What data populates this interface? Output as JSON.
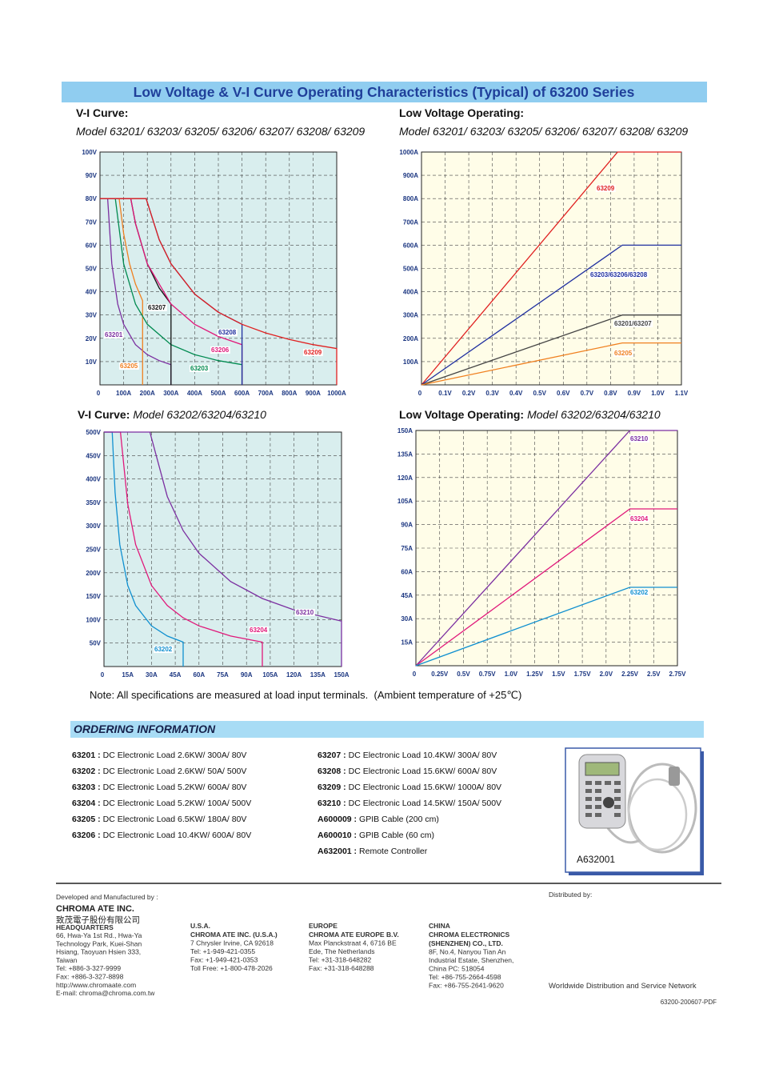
{
  "header": {
    "title": "Low Voltage & V-I Curve Operating Characteristics (Typical) of 63200 Series"
  },
  "chart_data": [
    {
      "type": "line",
      "title": "V-I Curve:",
      "subtitle": "Model 63201/ 63203/ 63205/ 63206/ 63207/ 63208/ 63209",
      "xlim": [
        0,
        1000
      ],
      "ylim": [
        0,
        100
      ],
      "xticks": [
        0,
        {
          "value": 100,
          "label": "100A"
        },
        {
          "value": 200,
          "label": "200A"
        },
        {
          "value": 300,
          "label": "300A"
        },
        {
          "value": 400,
          "label": "400A"
        },
        {
          "value": 500,
          "label": "500A"
        },
        {
          "value": 600,
          "label": "600A"
        },
        {
          "value": 700,
          "label": "700A"
        },
        {
          "value": 800,
          "label": "800A"
        },
        {
          "value": 900,
          "label": "900A"
        },
        {
          "value": 1000,
          "label": "1000A"
        }
      ],
      "yticks": [
        {
          "value": 10,
          "label": "10V"
        },
        {
          "value": 20,
          "label": "20V"
        },
        {
          "value": 30,
          "label": "30V"
        },
        {
          "value": 40,
          "label": "40V"
        },
        {
          "value": 50,
          "label": "50V"
        },
        {
          "value": 60,
          "label": "60V"
        },
        {
          "value": 70,
          "label": "70V"
        },
        {
          "value": 80,
          "label": "80V"
        },
        {
          "value": 90,
          "label": "90V"
        },
        {
          "value": 100,
          "label": "100V"
        }
      ],
      "grid": true,
      "series": [
        {
          "name": "63201",
          "color": "#7b2fa0",
          "x": [
            0,
            32.5,
            50,
            75,
            100,
            150,
            200,
            250,
            300,
            300
          ],
          "values": [
            80,
            80,
            52,
            34.7,
            26,
            17.3,
            13,
            10.4,
            8.7,
            0
          ]
        },
        {
          "name": "63205",
          "color": "#f08020",
          "x": [
            0,
            81,
            100,
            125,
            150,
            180,
            180
          ],
          "values": [
            80,
            80,
            65,
            52,
            43.3,
            36.1,
            0
          ]
        },
        {
          "name": "63203",
          "color": "#008a50",
          "x": [
            0,
            65,
            100,
            150,
            200,
            300,
            400,
            500,
            600,
            600
          ],
          "values": [
            80,
            80,
            52,
            34.7,
            26,
            17.3,
            13,
            10.4,
            8.7,
            0
          ]
        },
        {
          "name": "63207",
          "color": "#111111",
          "x": [
            0,
            130,
            150,
            200,
            250,
            300,
            300
          ],
          "values": [
            80,
            80,
            69.3,
            52,
            41.6,
            34.7,
            0
          ]
        },
        {
          "name": "63206",
          "color": "#e0187a",
          "x": [
            0,
            130,
            150,
            200,
            300,
            400,
            500,
            600,
            600
          ],
          "values": [
            80,
            80,
            69.3,
            52,
            34.7,
            26,
            20.8,
            17.3,
            0
          ]
        },
        {
          "name": "63208",
          "color": "#2030a0",
          "x": [
            0,
            195,
            250,
            300,
            400,
            500,
            600,
            600
          ],
          "values": [
            80,
            80,
            62.4,
            52,
            39,
            31.2,
            26,
            0
          ]
        },
        {
          "name": "63209",
          "color": "#e02020",
          "x": [
            0,
            195,
            250,
            300,
            400,
            500,
            600,
            700,
            800,
            900,
            1000,
            1000
          ],
          "values": [
            80,
            80,
            62.4,
            52,
            39,
            31.2,
            26,
            22.3,
            19.5,
            17.3,
            15.6,
            0
          ]
        }
      ]
    },
    {
      "type": "line",
      "title": "Low Voltage Operating:",
      "subtitle": "Model 63201/ 63203/ 63205/ 63206/ 63207/ 63208/ 63209",
      "xlim": [
        0,
        1.1
      ],
      "ylim": [
        0,
        1000
      ],
      "xticks": [
        0,
        {
          "value": 0.1,
          "label": "0.1V"
        },
        {
          "value": 0.2,
          "label": "0.2V"
        },
        {
          "value": 0.3,
          "label": "0.3V"
        },
        {
          "value": 0.4,
          "label": "0.4V"
        },
        {
          "value": 0.5,
          "label": "0.5V"
        },
        {
          "value": 0.6,
          "label": "0.6V"
        },
        {
          "value": 0.7,
          "label": "0.7V"
        },
        {
          "value": 0.8,
          "label": "0.8V"
        },
        {
          "value": 0.9,
          "label": "0.9V"
        },
        {
          "value": 1.0,
          "label": "1.0V"
        },
        {
          "value": 1.1,
          "label": "1.1V"
        }
      ],
      "yticks": [
        {
          "value": 100,
          "label": "100A"
        },
        {
          "value": 200,
          "label": "200A"
        },
        {
          "value": 300,
          "label": "300A"
        },
        {
          "value": 400,
          "label": "400A"
        },
        {
          "value": 500,
          "label": "500A"
        },
        {
          "value": 600,
          "label": "600A"
        },
        {
          "value": 700,
          "label": "700A"
        },
        {
          "value": 800,
          "label": "800A"
        },
        {
          "value": 900,
          "label": "900A"
        },
        {
          "value": 1000,
          "label": "1000A"
        }
      ],
      "grid": true,
      "series": [
        {
          "name": "63209",
          "color": "#e02020",
          "x": [
            0,
            0.83,
            1.1
          ],
          "values": [
            0,
            1000,
            1000
          ]
        },
        {
          "name": "63203/63206/63208",
          "color": "#2030a0",
          "x": [
            0,
            0.85,
            1.1
          ],
          "values": [
            0,
            600,
            600
          ]
        },
        {
          "name": "63201/63207",
          "color": "#444444",
          "x": [
            0,
            0.85,
            1.1
          ],
          "values": [
            0,
            300,
            300
          ]
        },
        {
          "name": "63205",
          "color": "#f08020",
          "x": [
            0,
            0.85,
            1.1
          ],
          "values": [
            0,
            180,
            180
          ]
        }
      ]
    },
    {
      "type": "line",
      "title": "V-I Curve:",
      "subtitle": "Model 63202/63204/63210",
      "xlim": [
        0,
        150
      ],
      "ylim": [
        0,
        500
      ],
      "xticks": [
        0,
        {
          "value": 15,
          "label": "15A"
        },
        {
          "value": 30,
          "label": "30A"
        },
        {
          "value": 45,
          "label": "45A"
        },
        {
          "value": 60,
          "label": "60A"
        },
        {
          "value": 75,
          "label": "75A"
        },
        {
          "value": 90,
          "label": "90A"
        },
        {
          "value": 105,
          "label": "105A"
        },
        {
          "value": 120,
          "label": "120A"
        },
        {
          "value": 135,
          "label": "135A"
        },
        {
          "value": 150,
          "label": "150A"
        }
      ],
      "yticks": [
        {
          "value": 50,
          "label": "50V"
        },
        {
          "value": 100,
          "label": "100V"
        },
        {
          "value": 150,
          "label": "150V"
        },
        {
          "value": 200,
          "label": "200V"
        },
        {
          "value": 250,
          "label": "250V"
        },
        {
          "value": 300,
          "label": "300V"
        },
        {
          "value": 350,
          "label": "350V"
        },
        {
          "value": 400,
          "label": "400V"
        },
        {
          "value": 450,
          "label": "450V"
        },
        {
          "value": 500,
          "label": "500V"
        }
      ],
      "grid": true,
      "series": [
        {
          "name": "63202",
          "color": "#1090d0",
          "x": [
            0,
            5.2,
            7,
            10,
            15,
            20,
            30,
            40,
            50,
            50
          ],
          "values": [
            500,
            500,
            371,
            260,
            173,
            130,
            86.7,
            65,
            52,
            0
          ]
        },
        {
          "name": "63204",
          "color": "#e0187a",
          "x": [
            0,
            10.4,
            15,
            20,
            30,
            40,
            50,
            60,
            80,
            100,
            100
          ],
          "values": [
            500,
            500,
            347,
            260,
            173,
            130,
            104,
            86.7,
            65,
            52,
            0
          ]
        },
        {
          "name": "63210",
          "color": "#7b2fa0",
          "x": [
            0,
            29,
            40,
            50,
            60,
            80,
            100,
            120,
            150,
            150
          ],
          "values": [
            500,
            500,
            362.5,
            290,
            241.7,
            181.3,
            145,
            120.8,
            96.7,
            0
          ]
        }
      ]
    },
    {
      "type": "line",
      "title": "Low Voltage Operating:",
      "subtitle": "Model 63202/63204/63210",
      "xlim": [
        0,
        2.75
      ],
      "ylim": [
        0,
        150
      ],
      "xticks": [
        0,
        {
          "value": 0.25,
          "label": "0.25V"
        },
        {
          "value": 0.5,
          "label": "0.5V"
        },
        {
          "value": 0.75,
          "label": "0.75V"
        },
        {
          "value": 1.0,
          "label": "1.0V"
        },
        {
          "value": 1.25,
          "label": "1.25V"
        },
        {
          "value": 1.5,
          "label": "1.5V"
        },
        {
          "value": 1.75,
          "label": "1.75V"
        },
        {
          "value": 2.0,
          "label": "2.0V"
        },
        {
          "value": 2.25,
          "label": "2.25V"
        },
        {
          "value": 2.5,
          "label": "2.5V"
        },
        {
          "value": 2.75,
          "label": "2.75V"
        }
      ],
      "yticks": [
        {
          "value": 15,
          "label": "15A"
        },
        {
          "value": 30,
          "label": "30A"
        },
        {
          "value": 45,
          "label": "45A"
        },
        {
          "value": 60,
          "label": "60A"
        },
        {
          "value": 75,
          "label": "75A"
        },
        {
          "value": 90,
          "label": "90A"
        },
        {
          "value": 105,
          "label": "105A"
        },
        {
          "value": 120,
          "label": "120A"
        },
        {
          "value": 135,
          "label": "135A"
        },
        {
          "value": 150,
          "label": "150A"
        }
      ],
      "grid": true,
      "series": [
        {
          "name": "63210",
          "color": "#7b2fa0",
          "x": [
            0,
            2.25,
            2.75
          ],
          "values": [
            0,
            150,
            150
          ]
        },
        {
          "name": "63204",
          "color": "#e0187a",
          "x": [
            0,
            2.25,
            2.75
          ],
          "values": [
            0,
            100,
            100
          ]
        },
        {
          "name": "63202",
          "color": "#1090d0",
          "x": [
            0,
            2.25,
            2.75
          ],
          "values": [
            0,
            50,
            50
          ]
        }
      ]
    }
  ],
  "note": "Note: All specifications are measured at load input terminals.  (Ambient temperature of +25℃)",
  "ordering": {
    "title": "ORDERING INFORMATION",
    "items": [
      {
        "code": "63201 :",
        "text": "DC Electronic Load 2.6KW/ 300A/ 80V"
      },
      {
        "code": "63202 :",
        "text": "DC Electronic Load 2.6KW/ 50A/ 500V"
      },
      {
        "code": "63203 :",
        "text": "DC Electronic Load 5.2KW/ 600A/ 80V"
      },
      {
        "code": "63204 :",
        "text": "DC Electronic Load 5.2KW/ 100A/ 500V"
      },
      {
        "code": "63205 :",
        "text": "DC Electronic Load 6.5KW/ 180A/ 80V"
      },
      {
        "code": "63206 :",
        "text": "DC Electronic Load 10.4KW/ 600A/ 80V"
      },
      {
        "code": "63207 :",
        "text": "DC Electronic Load 10.4KW/ 300A/ 80V"
      },
      {
        "code": "63208 :",
        "text": "DC Electronic Load 15.6KW/ 600A/ 80V"
      },
      {
        "code": "63209 :",
        "text": "DC Electronic Load 15.6KW/ 1000A/ 80V"
      },
      {
        "code": "63210 :",
        "text": "DC Electronic Load 14.5KW/ 150A/ 500V"
      },
      {
        "code": "A600009 :",
        "text": "GPIB Cable (200 cm)"
      },
      {
        "code": "A600010 :",
        "text": "GPIB Cable (60 cm)"
      },
      {
        "code": "A632001 :",
        "text": "Remote Controller"
      }
    ],
    "photo_caption": "A632001"
  },
  "footer": {
    "dev": "Developed and Manufactured by :",
    "company": "CHROMA ATE INC.",
    "company_cn": "致茂電子股份有限公司",
    "hq": {
      "title": "HEADQUARTERS",
      "lines": [
        "66, Hwa-Ya 1st Rd., Hwa-Ya",
        "Technology Park, Kuei-Shan",
        "Hsiang, Taoyuan Hsien 333,",
        "Taiwan",
        "Tel: +886-3-327-9999",
        "Fax: +886-3-327-8898",
        "http://www.chromaate.com",
        "E-mail: chroma@chroma.com.tw"
      ]
    },
    "offices": [
      {
        "region": "U.S.A.",
        "names": [
          "CHROMA ATE INC. (U.S.A.)"
        ],
        "lines": [
          "7 Chrysler Irvine, CA 92618",
          "Tel: +1-949-421-0355",
          "Fax: +1-949-421-0353",
          "Toll Free: +1-800-478-2026"
        ]
      },
      {
        "region": "EUROPE",
        "names": [
          "CHROMA ATE EUROPE B.V."
        ],
        "lines": [
          "Max Planckstraat 4, 6716 BE",
          "Ede, The Netherlands",
          "Tel: +31-318-648282",
          "Fax: +31-318-648288"
        ]
      },
      {
        "region": "CHINA",
        "names": [
          "CHROMA ELECTRONICS",
          "(SHENZHEN) CO., LTD."
        ],
        "lines": [
          "8F, No.4, Nanyou Tian An",
          "Industrial Estate, Shenzhen,",
          "China PC: 518054",
          "Tel: +86-755-2664-4598",
          "Fax: +86-755-2641-9620"
        ]
      }
    ],
    "distributed": "Distributed by:",
    "network": "Worldwide Distribution and Service Network",
    "doc_id": "63200-200607-PDF"
  }
}
